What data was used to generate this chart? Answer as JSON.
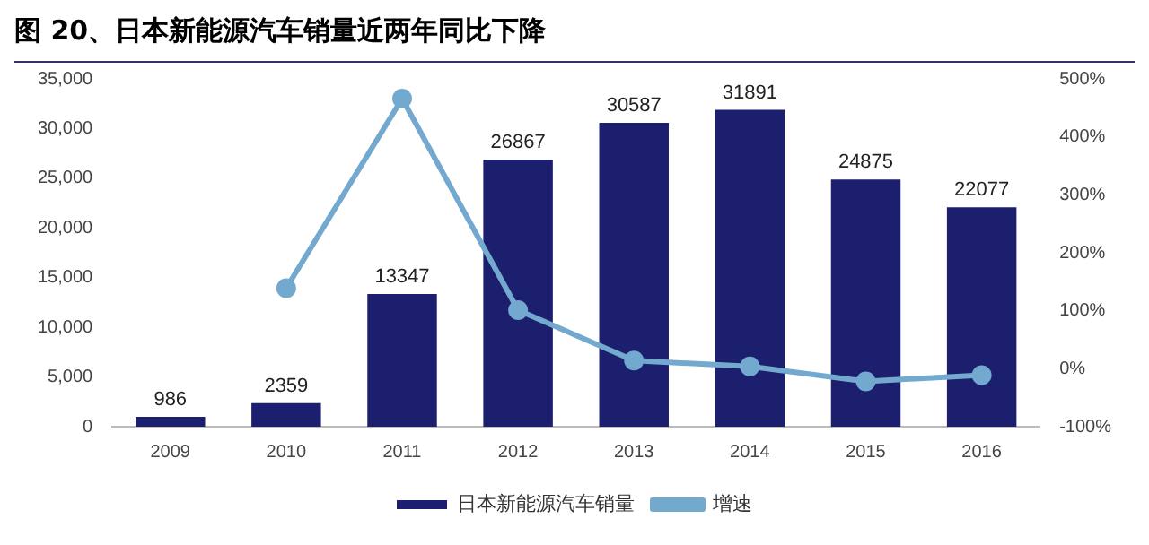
{
  "chart_data": {
    "type": "bar",
    "title": "图 20、日本新能源汽车销量近两年同比下降",
    "categories": [
      "2009",
      "2010",
      "2011",
      "2012",
      "2013",
      "2014",
      "2015",
      "2016"
    ],
    "series": [
      {
        "name": "日本新能源汽车销量",
        "color": "#1b1f6e",
        "values": [
          986,
          2359,
          13347,
          26867,
          30587,
          31891,
          24875,
          22077
        ],
        "value_labels": [
          "986",
          "2359",
          "13347",
          "26867",
          "30587",
          "31891",
          "24875",
          "22077"
        ]
      },
      {
        "name": "增速",
        "type": "line",
        "axis": "y2",
        "color": "#74a9cf",
        "marker": "circle",
        "values": [
          null,
          139,
          466,
          101,
          14,
          4,
          -22,
          -11
        ]
      }
    ],
    "ylim": [
      0,
      35000
    ],
    "yticks": [
      {
        "value": 0,
        "label": "0"
      },
      {
        "value": 5000,
        "label": "5,000"
      },
      {
        "value": 10000,
        "label": "10,000"
      },
      {
        "value": 15000,
        "label": "15,000"
      },
      {
        "value": 20000,
        "label": "20,000"
      },
      {
        "value": 25000,
        "label": "25,000"
      },
      {
        "value": 30000,
        "label": "30,000"
      },
      {
        "value": 35000,
        "label": "35,000"
      }
    ],
    "y2lim": [
      -100,
      500
    ],
    "y2ticks": [
      {
        "value": -100,
        "label": "-100%"
      },
      {
        "value": 0,
        "label": "0%"
      },
      {
        "value": 100,
        "label": "100%"
      },
      {
        "value": 200,
        "label": "200%"
      },
      {
        "value": 300,
        "label": "300%"
      },
      {
        "value": 400,
        "label": "400%"
      },
      {
        "value": 500,
        "label": "500%"
      }
    ],
    "grid": false,
    "legend": "bottom"
  }
}
